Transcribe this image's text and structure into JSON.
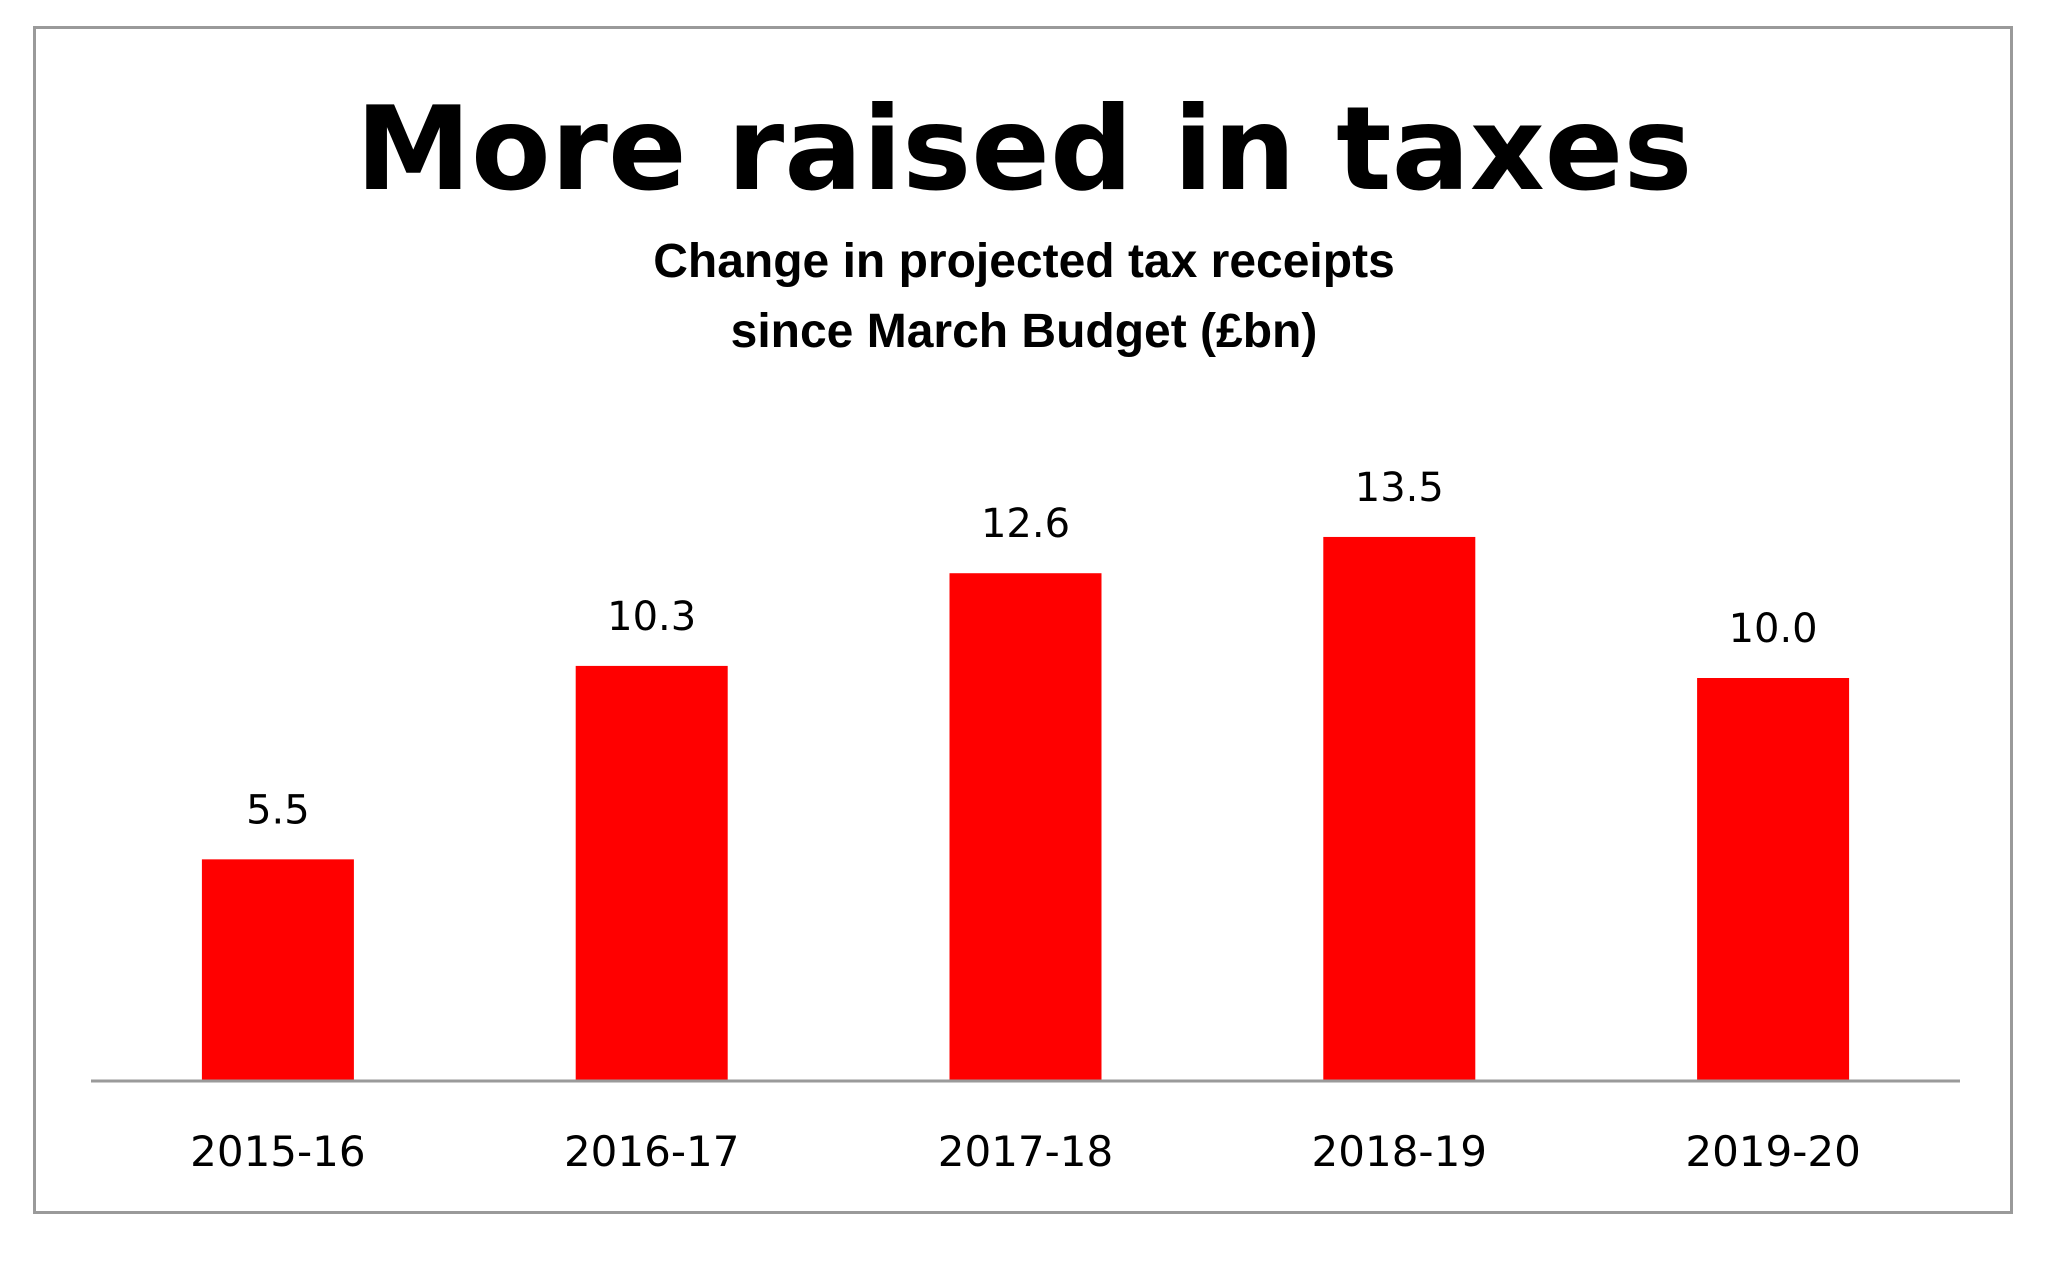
{
  "colors": {
    "bar": "#ff0000",
    "axis": "#9a9a9a",
    "text": "#000000",
    "frame": "#9a9a9a"
  },
  "chart_data": {
    "type": "bar",
    "title": "More raised in taxes",
    "subtitle_lines": [
      "Change in projected tax receipts",
      "since March Budget (£bn)"
    ],
    "categories": [
      "2015-16",
      "2016-17",
      "2017-18",
      "2018-19",
      "2019-20"
    ],
    "values": [
      5.5,
      10.3,
      12.6,
      13.5,
      10.0
    ],
    "value_labels": [
      "5.5",
      "10.3",
      "12.6",
      "13.5",
      "10.0"
    ],
    "xlabel": "",
    "ylabel": "",
    "ylim": [
      0,
      15
    ],
    "grid": false,
    "legend": "none"
  }
}
